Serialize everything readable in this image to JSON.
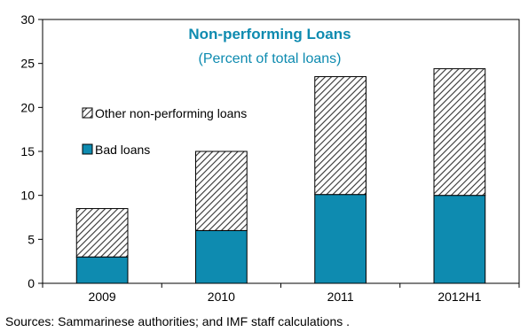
{
  "chart_data": {
    "type": "bar",
    "stacked": true,
    "title": "Non-performing Loans",
    "subtitle": "(Percent of total loans)",
    "categories": [
      "2009",
      "2010",
      "2011",
      "2012H1"
    ],
    "series": [
      {
        "name": "Bad loans",
        "values": [
          3.0,
          6.0,
          10.1,
          10.0
        ],
        "color": "#0e8bb0",
        "pattern": "solid"
      },
      {
        "name": "Other non-performing loans",
        "values": [
          5.5,
          9.0,
          13.4,
          14.4
        ],
        "color": "#ffffff",
        "pattern": "diagonal-hatch"
      }
    ],
    "ylim": [
      0,
      30
    ],
    "yticks": [
      0,
      5,
      10,
      15,
      20,
      25,
      30
    ],
    "grid": false,
    "legend_position": "left-middle inside",
    "title_color": "#0e8bb0"
  },
  "source_note": "Sources: Sammarinese authorities; and IMF staff calculations ."
}
